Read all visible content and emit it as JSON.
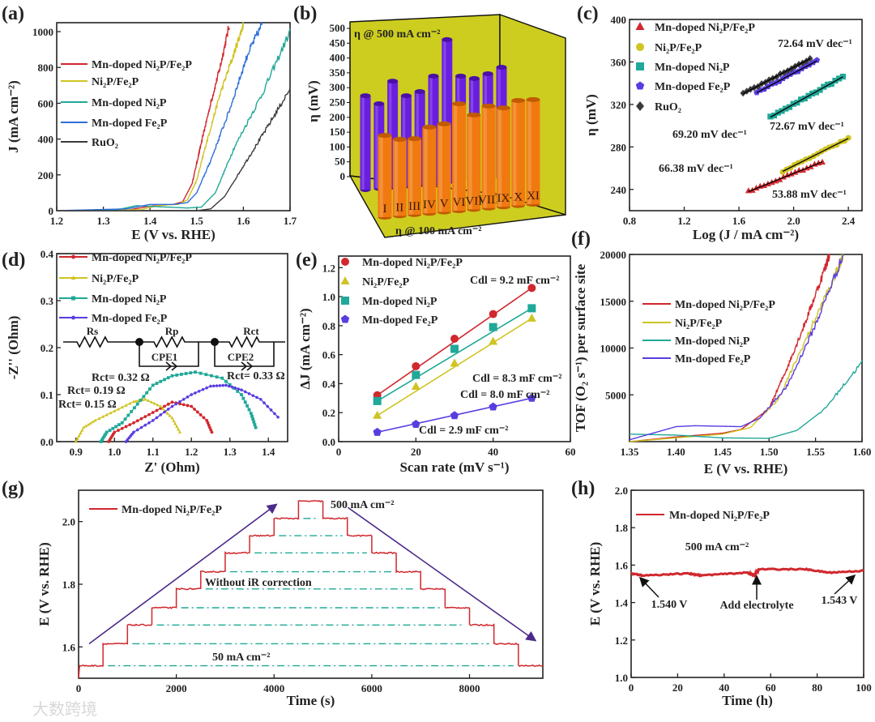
{
  "panel_letters": [
    "(a)",
    "(b)",
    "(c)",
    "(d)",
    "(e)",
    "(f)",
    "(g)",
    "(h)"
  ],
  "watermark": "大数跨境",
  "colors": {
    "red": "#d0282e",
    "yellow": "#cfc422",
    "teal": "#20a898",
    "blue": "#2d6fd8",
    "purple": "#5a3ce0",
    "black": "#3a3a3a",
    "arrow": "#4b2a8a",
    "wall": "#cdcd20",
    "bar500": "#6a1ee0",
    "bar100": "#f07a10"
  },
  "chart_data": [
    {
      "panel": "a",
      "type": "line",
      "xlabel": "E (V vs. RHE)",
      "ylabel": "J (mA cm⁻²)",
      "xlim": [
        1.2,
        1.7
      ],
      "ylim": [
        0,
        1050
      ],
      "xticks": [
        "1.2",
        "1.3",
        "1.4",
        "1.5",
        "1.6",
        "1.7"
      ],
      "yticks": [
        "0",
        "200",
        "400",
        "600",
        "800",
        "1000"
      ],
      "legend": "top-left",
      "series": [
        {
          "name": "Mn-doped Ni₂P/Fe₂P",
          "color": "#d0282e",
          "x": [
            1.2,
            1.35,
            1.4,
            1.45,
            1.47,
            1.49,
            1.51,
            1.53,
            1.55,
            1.57
          ],
          "y": [
            0,
            2,
            25,
            35,
            50,
            150,
            380,
            600,
            800,
            1040
          ]
        },
        {
          "name": "Ni₂P/Fe₂P",
          "color": "#cfc422",
          "x": [
            1.2,
            1.38,
            1.42,
            1.46,
            1.48,
            1.5,
            1.52,
            1.55,
            1.58,
            1.6
          ],
          "y": [
            0,
            5,
            30,
            35,
            60,
            170,
            370,
            650,
            880,
            1040
          ]
        },
        {
          "name": "Mn-doped Ni₂P",
          "color": "#20a898",
          "x": [
            1.2,
            1.33,
            1.37,
            1.42,
            1.48,
            1.51,
            1.54,
            1.58,
            1.64,
            1.7
          ],
          "y": [
            0,
            5,
            28,
            22,
            15,
            20,
            100,
            350,
            650,
            1000
          ]
        },
        {
          "name": "Mn-doped Fe₂P",
          "color": "#2d6fd8",
          "x": [
            1.2,
            1.35,
            1.4,
            1.45,
            1.48,
            1.5,
            1.53,
            1.57,
            1.61,
            1.64
          ],
          "y": [
            0,
            10,
            35,
            35,
            45,
            100,
            280,
            560,
            880,
            1040
          ]
        },
        {
          "name": "RuO₂",
          "color": "#3a3a3a",
          "x": [
            1.2,
            1.5,
            1.53,
            1.56,
            1.6,
            1.65,
            1.7
          ],
          "y": [
            0,
            0,
            10,
            80,
            250,
            460,
            680
          ]
        }
      ]
    },
    {
      "panel": "b",
      "type": "bar",
      "ylabel": "η (mV)",
      "ylim": [
        0,
        500
      ],
      "yticks": [
        "0",
        "50",
        "100",
        "150",
        "200",
        "250",
        "300",
        "350",
        "400",
        "450",
        "500"
      ],
      "categories": [
        "I",
        "II",
        "III",
        "IV",
        "V",
        "VI",
        "VII",
        "VIII",
        "IX",
        "X",
        "XI"
      ],
      "series": [
        {
          "name": "η @ 500 mA cm⁻²",
          "values": [
            273,
            246,
            322,
            273,
            287,
            339,
            462,
            339,
            331,
            347,
            369
          ]
        },
        {
          "name": "η @ 100 mA cm⁻²",
          "values": [
            139,
            126,
            128,
            167,
            178,
            246,
            208,
            238,
            232,
            257,
            260
          ]
        }
      ]
    },
    {
      "panel": "c",
      "type": "scatter",
      "xlabel": "Log (J / mA cm⁻²)",
      "ylabel": "η (mV)",
      "xlim": [
        0.8,
        2.5
      ],
      "ylim": [
        220,
        400
      ],
      "xticks": [
        "0.8",
        "1.2",
        "1.6",
        "2.0",
        "2.4"
      ],
      "yticks": [
        "240",
        "280",
        "320",
        "360",
        "400"
      ],
      "legend": "top-left",
      "series": [
        {
          "name": "Mn-doped Ni₂P/Fe₂P",
          "marker": "triangle",
          "color": "#d0282e",
          "x": [
            1.67,
            2.21
          ],
          "y": [
            238,
            266
          ],
          "tafel": "53.88 mV dec⁻¹"
        },
        {
          "name": "Ni₂P/Fe₂P",
          "marker": "circle",
          "color": "#cfc422",
          "x": [
            1.92,
            2.4
          ],
          "y": [
            257,
            288
          ],
          "tafel": "66.38 mV dec⁻¹"
        },
        {
          "name": "Mn-doped Ni₂P",
          "marker": "square",
          "color": "#20a898",
          "x": [
            1.83,
            2.36
          ],
          "y": [
            308,
            346
          ],
          "tafel": "72.67 mV dec⁻¹"
        },
        {
          "name": "Mn-doped Fe₂P",
          "marker": "pentagon",
          "color": "#5a3ce0",
          "x": [
            1.73,
            2.17
          ],
          "y": [
            331,
            361
          ],
          "tafel": "72.64 mV dec⁻¹"
        },
        {
          "name": "RuO₂",
          "marker": "diamond",
          "color": "#3a3a3a",
          "x": [
            1.63,
            2.12
          ],
          "y": [
            330,
            363
          ],
          "tafel": "69.20 mV dec⁻¹"
        }
      ]
    },
    {
      "panel": "d",
      "type": "scatter",
      "xlabel": "Z' (Ohm)",
      "ylabel": "-Z'' (Ohm)",
      "xlim": [
        0.85,
        1.45
      ],
      "ylim": [
        0,
        0.4
      ],
      "xticks": [
        "0.9",
        "1.0",
        "1.1",
        "1.2",
        "1.3",
        "1.4"
      ],
      "yticks": [
        "0.0",
        "0.1",
        "0.2",
        "0.3",
        "0.4"
      ],
      "legend": "top-left",
      "circuit": {
        "labels": [
          "Rs",
          "Rp",
          "Rct",
          "CPE1",
          "CPE2"
        ]
      },
      "series": [
        {
          "name": "Mn-doped Ni₂P/Fe₂P",
          "marker": "circle",
          "color": "#d0282e",
          "rct": "Rct= 0.15 Ω",
          "x": [
            0.985,
            1.0,
            1.05,
            1.1,
            1.15,
            1.2,
            1.24,
            1.253
          ],
          "y": [
            0,
            0.02,
            0.04,
            0.062,
            0.084,
            0.075,
            0.045,
            0.02
          ]
        },
        {
          "name": "Ni₂P/Fe₂P",
          "marker": "triangle",
          "color": "#cfc422",
          "rct": "Rct= 0.19 Ω",
          "x": [
            0.9,
            0.92,
            0.95,
            1.0,
            1.05,
            1.08,
            1.12,
            1.15,
            1.17
          ],
          "y": [
            0,
            0.03,
            0.045,
            0.065,
            0.085,
            0.09,
            0.075,
            0.05,
            0.02
          ]
        },
        {
          "name": "Mn-doped Ni₂P",
          "marker": "square",
          "color": "#20a898",
          "rct": "Rct= 0.32 Ω",
          "x": [
            0.965,
            0.98,
            1.02,
            1.06,
            1.1,
            1.15,
            1.21,
            1.28,
            1.33,
            1.355,
            1.367
          ],
          "y": [
            0,
            0.02,
            0.04,
            0.08,
            0.12,
            0.14,
            0.148,
            0.135,
            0.1,
            0.06,
            0.03
          ]
        },
        {
          "name": "Mn-doped Fe₂P",
          "marker": "pentagon",
          "color": "#5a3ce0",
          "rct": "Rct= 0.33 Ω",
          "x": [
            1.03,
            1.05,
            1.1,
            1.15,
            1.2,
            1.25,
            1.29,
            1.33,
            1.38,
            1.425
          ],
          "y": [
            0,
            0.02,
            0.045,
            0.075,
            0.1,
            0.118,
            0.12,
            0.11,
            0.09,
            0.052
          ]
        }
      ]
    },
    {
      "panel": "e",
      "type": "scatter",
      "xlabel": "Scan rate (mV s⁻¹)",
      "ylabel": "ΔJ (mA cm⁻²)",
      "xlim": [
        0,
        60
      ],
      "ylim": [
        0,
        1.28
      ],
      "xticks": [
        "0",
        "20",
        "40",
        "60"
      ],
      "yticks": [
        "0.0",
        "0.2",
        "0.4",
        "0.6",
        "0.8",
        "1.0",
        "1.2"
      ],
      "legend": "top-left",
      "x": [
        10,
        20,
        30,
        40,
        50
      ],
      "series": [
        {
          "name": "Mn-doped Ni₂P/Fe₂P",
          "marker": "circle",
          "color": "#d0282e",
          "cdl": "Cdl = 9.2 mF cm⁻²",
          "y": [
            0.32,
            0.52,
            0.71,
            0.88,
            1.06
          ]
        },
        {
          "name": "Ni₂P/Fe₂P",
          "marker": "triangle",
          "color": "#cfc422",
          "cdl": "Cdl = 8.3 mF cm⁻²",
          "y": [
            0.18,
            0.38,
            0.54,
            0.69,
            0.85
          ]
        },
        {
          "name": "Mn-doped Ni₂P",
          "marker": "square",
          "color": "#20a898",
          "cdl": "Cdl = 8.0 mF cm⁻²",
          "y": [
            0.28,
            0.46,
            0.64,
            0.79,
            0.92
          ]
        },
        {
          "name": "Mn-doped Fe₂P",
          "marker": "pentagon",
          "color": "#5a3ce0",
          "cdl": "Cdl = 2.9 mF cm⁻²",
          "y": [
            0.065,
            0.12,
            0.18,
            0.24,
            0.3
          ]
        }
      ]
    },
    {
      "panel": "f",
      "type": "line",
      "xlabel": "E (V vs. RHE)",
      "ylabel": "TOF (O₂ s⁻¹) per surface site",
      "xlim": [
        1.35,
        1.6
      ],
      "ylim": [
        0,
        20000
      ],
      "xticks": [
        "1.35",
        "1.40",
        "1.45",
        "1.50",
        "1.55",
        "1.60"
      ],
      "yticks": [
        "5000",
        "10000",
        "15000",
        "20000"
      ],
      "legend": "middle-left",
      "series": [
        {
          "name": "Mn-doped Ni₂P/Fe₂P",
          "color": "#d0282e",
          "x": [
            1.35,
            1.4,
            1.45,
            1.47,
            1.5,
            1.52,
            1.54,
            1.56,
            1.565
          ],
          "y": [
            0,
            500,
            900,
            1300,
            3500,
            8000,
            13000,
            18500,
            20000
          ]
        },
        {
          "name": "Ni₂P/Fe₂P",
          "color": "#cfc422",
          "x": [
            1.35,
            1.4,
            1.45,
            1.48,
            1.51,
            1.54,
            1.57,
            1.58
          ],
          "y": [
            0,
            400,
            800,
            1500,
            4500,
            11000,
            17500,
            20000
          ]
        },
        {
          "name": "Mn-doped Ni₂P",
          "color": "#20a898",
          "x": [
            1.35,
            1.4,
            1.45,
            1.5,
            1.53,
            1.56,
            1.6
          ],
          "y": [
            800,
            700,
            400,
            350,
            1200,
            3500,
            8500
          ]
        },
        {
          "name": "Mn-doped Fe₂P",
          "color": "#5a3ce0",
          "x": [
            1.35,
            1.4,
            1.42,
            1.47,
            1.49,
            1.52,
            1.55,
            1.58
          ],
          "y": [
            200,
            1600,
            1700,
            1600,
            2500,
            6000,
            12500,
            20000
          ]
        }
      ]
    },
    {
      "panel": "g",
      "type": "line",
      "xlabel": "Time (s)",
      "ylabel": "E (V vs. RHE)",
      "xlim": [
        0,
        9500
      ],
      "ylim": [
        1.5,
        2.1
      ],
      "xticks": [
        "0",
        "2000",
        "4000",
        "6000",
        "8000"
      ],
      "yticks": [
        "1.6",
        "1.8",
        "2.0"
      ],
      "legend": "top-left",
      "step_duration_s": 500,
      "annotations": [
        "500 mA cm⁻²",
        "Without iR correction",
        "50 mA cm⁻²"
      ],
      "series": [
        {
          "name": "Mn-doped Ni₂P/Fe₂P",
          "color": "#d0282e",
          "steps": [
            1.54,
            1.61,
            1.67,
            1.725,
            1.785,
            1.84,
            1.9,
            1.955,
            2.01,
            2.065,
            2.01,
            1.955,
            1.9,
            1.84,
            1.785,
            1.725,
            1.67,
            1.61,
            1.54
          ]
        }
      ]
    },
    {
      "panel": "h",
      "type": "line",
      "xlabel": "Time (h)",
      "ylabel": "E (V vs. RHE)",
      "xlim": [
        0,
        100
      ],
      "ylim": [
        1.0,
        2.0
      ],
      "xticks": [
        "0",
        "20",
        "40",
        "60",
        "80",
        "100"
      ],
      "yticks": [
        "1.0",
        "1.2",
        "1.4",
        "1.6",
        "1.8",
        "2.0"
      ],
      "legend": "top-left",
      "annotations": [
        "500 mA cm⁻²",
        "1.540 V",
        "Add electrolyte",
        "1.543 V"
      ],
      "series": [
        {
          "name": "Mn-doped Ni₂P/Fe₂P",
          "color": "#d0282e",
          "x": [
            0,
            5,
            25,
            30,
            50,
            53,
            55,
            75,
            85,
            100
          ],
          "y": [
            1.555,
            1.545,
            1.555,
            1.545,
            1.56,
            1.545,
            1.578,
            1.578,
            1.56,
            1.57
          ]
        }
      ]
    }
  ]
}
